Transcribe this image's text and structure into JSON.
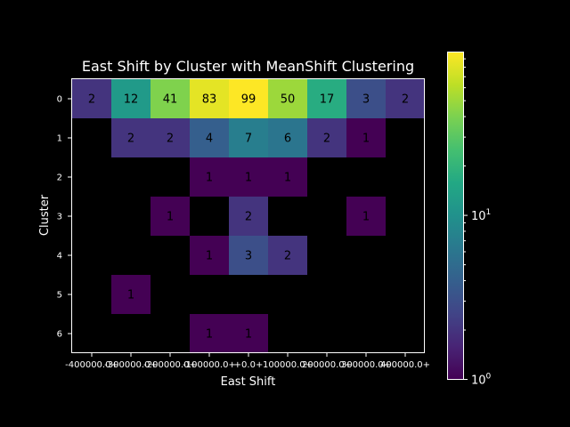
{
  "chart_data": {
    "type": "heatmap",
    "title": "East Shift by Cluster with MeanShift Clustering",
    "xlabel": "East Shift",
    "ylabel": "Cluster",
    "x_tick_labels": [
      "-400000.0+",
      "-300000.0+",
      "-200000.0+",
      "-100000.0+",
      "+0.0+",
      "100000.0+",
      "200000.0+",
      "300000.0+",
      "400000.0+"
    ],
    "y_tick_labels": [
      "0",
      "1",
      "2",
      "3",
      "4",
      "5",
      "6"
    ],
    "colorbar": {
      "scale": "log",
      "range": [
        1,
        99
      ],
      "ticks": [
        {
          "value": 1,
          "base": "10",
          "exp": "0"
        },
        {
          "value": 10,
          "base": "10",
          "exp": "1"
        }
      ],
      "colormap": "viridis"
    },
    "values": [
      [
        2,
        12,
        41,
        83,
        99,
        50,
        17,
        3,
        2
      ],
      [
        null,
        2,
        2,
        4,
        7,
        6,
        2,
        1,
        null
      ],
      [
        null,
        null,
        null,
        1,
        1,
        1,
        null,
        null,
        null
      ],
      [
        null,
        null,
        1,
        null,
        2,
        null,
        null,
        1,
        null
      ],
      [
        null,
        null,
        null,
        1,
        3,
        2,
        null,
        null,
        null
      ],
      [
        null,
        1,
        null,
        null,
        null,
        null,
        null,
        null,
        null
      ],
      [
        null,
        null,
        null,
        1,
        1,
        null,
        null,
        null,
        null
      ]
    ]
  }
}
